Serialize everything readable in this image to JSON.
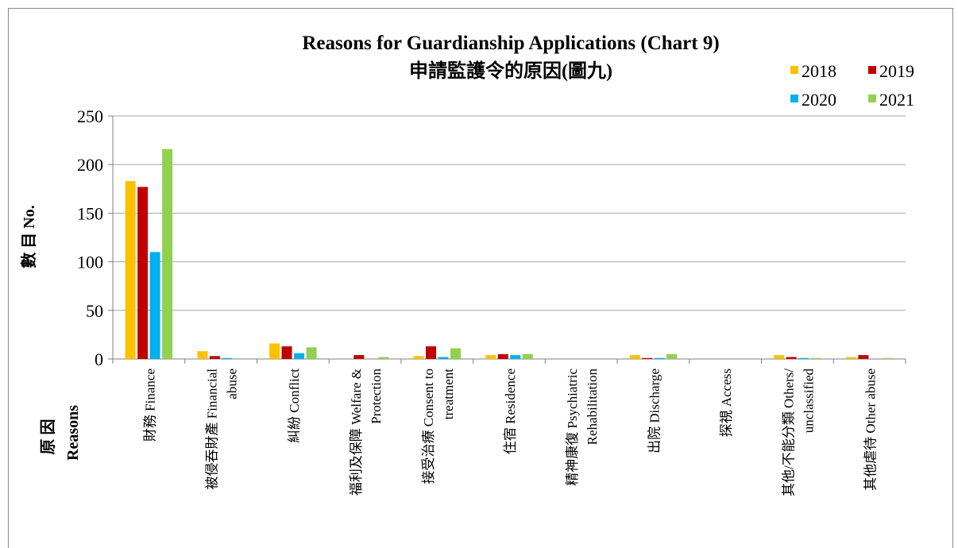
{
  "chart_data": {
    "type": "bar",
    "title": "Reasons for Guardianship Applications (Chart 9)",
    "subtitle": "申請監護令的原因(圖九)",
    "ylabel": "數 目 No.",
    "xlabel_line1": "原 因",
    "xlabel_line2": "Reasons",
    "ylim": [
      0,
      250
    ],
    "yticks": [
      "0",
      "50",
      "100",
      "150",
      "200",
      "250"
    ],
    "legend_position": "top-right",
    "grid": true,
    "categories": [
      [
        "財務 Finance"
      ],
      [
        "被侵吞財產 Financial",
        "abuse"
      ],
      [
        "糾紛 Conflict"
      ],
      [
        "福利及保障 Welfare &",
        "Protection"
      ],
      [
        "接受治療 Consent to",
        "treatment"
      ],
      [
        "住宿 Residence"
      ],
      [
        "精神康復 Psychiatric",
        "Rehabilitation"
      ],
      [
        "出院 Discharge"
      ],
      [
        "探視 Access"
      ],
      [
        "其他/不能分類 Others/",
        "unclassified"
      ],
      [
        "其他虐待 Other abuse"
      ]
    ],
    "series": [
      {
        "name": "2018",
        "color": "#FFC000",
        "values": [
          183,
          8,
          16,
          0,
          3,
          4,
          0,
          4,
          0,
          4,
          2
        ]
      },
      {
        "name": "2019",
        "color": "#C00000",
        "values": [
          177,
          3,
          13,
          4,
          13,
          5,
          0,
          1,
          0,
          2,
          4
        ]
      },
      {
        "name": "2020",
        "color": "#00B0F0",
        "values": [
          110,
          1,
          6,
          0,
          2,
          4,
          0,
          1,
          0,
          1,
          0
        ]
      },
      {
        "name": "2021",
        "color": "#92D050",
        "values": [
          216,
          0,
          12,
          2,
          11,
          5,
          0,
          5,
          0,
          1,
          1
        ]
      }
    ]
  }
}
